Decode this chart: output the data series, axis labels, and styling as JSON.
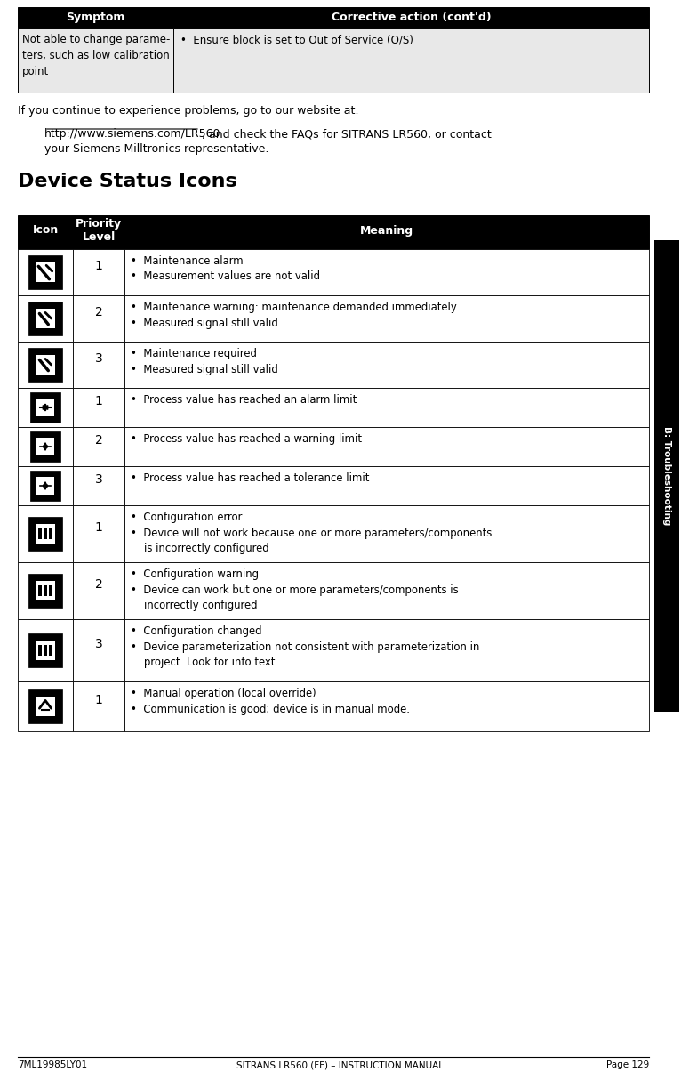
{
  "page_bg": "#ffffff",
  "header_bg": "#000000",
  "header_text_color": "#ffffff",
  "table_border_color": "#000000",
  "cell_bg_light": "#e8e8e8",
  "cell_bg_white": "#ffffff",
  "text_color": "#000000",
  "sidebar_bg": "#000000",
  "sidebar_text": "B: Troubleshooting",
  "top_table_headers": [
    "Symptom",
    "Corrective action (cont'd)"
  ],
  "top_table_row_col1": "Not able to change parame-\nters, such as low calibration\npoint",
  "top_table_row_col2": "•  Ensure block is set to Out of Service (O/S)",
  "intro_text": "If you continue to experience problems, go to our website at:",
  "url_text": "http://www.siemens.com/LR560",
  "url_suffix1": ", and check the FAQs for SITRANS LR560, or contact",
  "url_suffix2": "your Siemens Milltronics representative.",
  "section_title": "Device Status Icons",
  "device_table_headers": [
    "Icon",
    "Priority\nLevel",
    "Meaning"
  ],
  "device_rows": [
    {
      "priority": "1",
      "meaning": "•  Maintenance alarm\n•  Measurement values are not valid"
    },
    {
      "priority": "2",
      "meaning": "•  Maintenance warning: maintenance demanded immediately\n•  Measured signal still valid"
    },
    {
      "priority": "3",
      "meaning": "•  Maintenance required\n•  Measured signal still valid"
    },
    {
      "priority": "1",
      "meaning": "•  Process value has reached an alarm limit"
    },
    {
      "priority": "2",
      "meaning": "•  Process value has reached a warning limit"
    },
    {
      "priority": "3",
      "meaning": "•  Process value has reached a tolerance limit"
    },
    {
      "priority": "1",
      "meaning": "•  Configuration error\n•  Device will not work because one or more parameters/components\n    is incorrectly configured"
    },
    {
      "priority": "2",
      "meaning": "•  Configuration warning\n•  Device can work but one or more parameters/components is\n    incorrectly configured"
    },
    {
      "priority": "3",
      "meaning": "•  Configuration changed\n•  Device parameterization not consistent with parameterization in\n    project. Look for info text."
    },
    {
      "priority": "1",
      "meaning": "•  Manual operation (local override)\n•  Communication is good; device is in manual mode."
    }
  ],
  "footer_left": "7ML19985LY01",
  "footer_center": "SITRANS LR560 (FF) – INSTRUCTION MANUAL",
  "footer_right": "Page 129"
}
